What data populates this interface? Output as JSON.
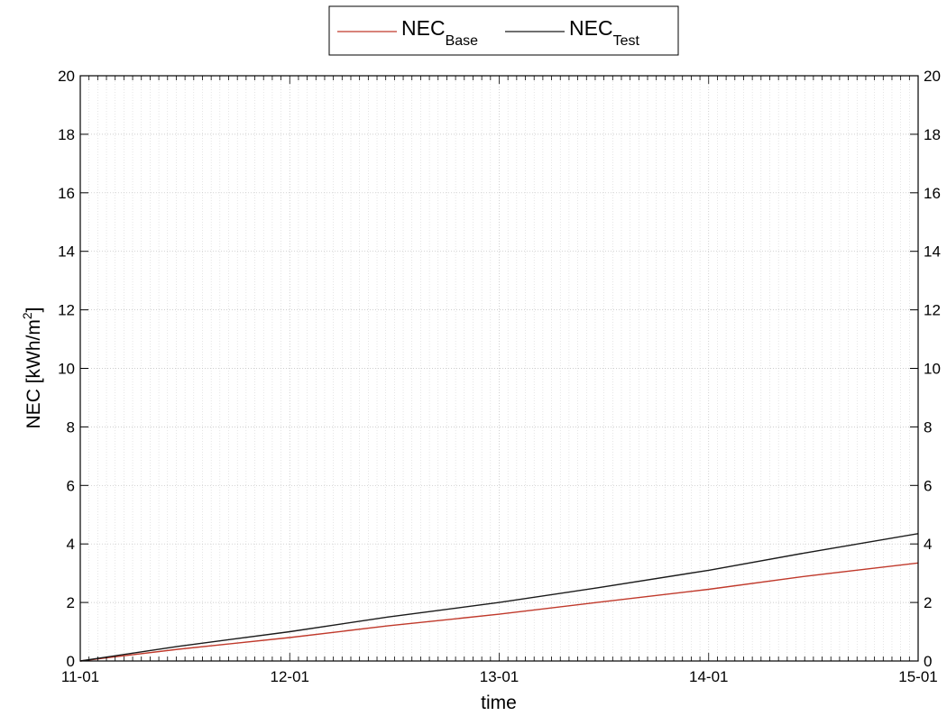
{
  "chart_data": {
    "type": "line",
    "xlabel": "time",
    "ylabel": "NEC [kWh/m",
    "ylabel_sup": "2",
    "ylabel_end": "]",
    "x_ticks": [
      "11-01",
      "12-01",
      "13-01",
      "14-01",
      "15-01"
    ],
    "xlim": [
      "11-01",
      "15-01"
    ],
    "ylim": [
      0,
      20
    ],
    "y_ticks": [
      "0",
      "2",
      "4",
      "6",
      "8",
      "10",
      "12",
      "14",
      "16",
      "18",
      "20"
    ],
    "grid": true,
    "legend_position": "top-center-outside",
    "series": [
      {
        "name": "NEC",
        "name_sub": "Base",
        "color": "#c0392b",
        "x": [
          "11-01",
          "11-15",
          "12-01",
          "12-15",
          "13-01",
          "13-15",
          "14-01",
          "14-15",
          "15-01"
        ],
        "values": [
          0.0,
          0.4,
          0.8,
          1.2,
          1.6,
          2.0,
          2.45,
          2.9,
          3.35
        ]
      },
      {
        "name": "NEC",
        "name_sub": "Test",
        "color": "#1a1a1a",
        "x": [
          "11-01",
          "11-15",
          "12-01",
          "12-15",
          "13-01",
          "13-15",
          "14-01",
          "14-15",
          "15-01"
        ],
        "values": [
          0.0,
          0.5,
          1.0,
          1.5,
          2.0,
          2.5,
          3.1,
          3.7,
          4.35
        ]
      }
    ]
  }
}
